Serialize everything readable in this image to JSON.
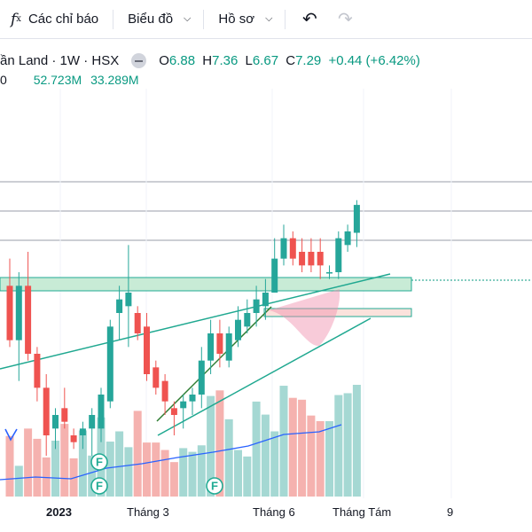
{
  "toolbar": {
    "fx_label": "f",
    "fx_sub": "x",
    "indicators": "Các chỉ báo",
    "chart_type": "Biểu đồ",
    "profile": "Hồ sơ"
  },
  "legend": {
    "symbol": "ần Land · 1W · HSX",
    "open_key": "O",
    "open": "6.88",
    "high_key": "H",
    "high": "7.36",
    "low_key": "L",
    "low": "6.67",
    "close_key": "C",
    "close": "7.29",
    "change": "+0.44 (+6.42%)"
  },
  "volume_row": {
    "prefix": "0",
    "vol": "52.723M",
    "vol_ma": "33.289M"
  },
  "time_axis": {
    "t1": "2023",
    "t2": "Tháng 3",
    "t3": "Tháng 6",
    "t4": "Tháng Tám",
    "t5": "9"
  },
  "markers": [
    "F",
    "F",
    "F"
  ],
  "colors": {
    "up": "#26a69a",
    "down": "#ef5350",
    "vol_up": "#a5d8d3",
    "vol_down": "#f5b2af",
    "trend": "#1fa890",
    "ma": "#2962ff"
  },
  "chart_data": {
    "type": "candlestick",
    "x_ticks": [
      "2023",
      "Tháng 3",
      "Tháng 6",
      "Tháng Tám",
      "9"
    ],
    "candles": [
      {
        "o": 6.1,
        "h": 6.5,
        "l": 5.2,
        "c": 5.3
      },
      {
        "o": 5.3,
        "h": 6.3,
        "l": 4.7,
        "c": 6.1
      },
      {
        "o": 6.1,
        "h": 6.6,
        "l": 5.0,
        "c": 5.1
      },
      {
        "o": 5.1,
        "h": 5.2,
        "l": 4.4,
        "c": 4.6
      },
      {
        "o": 4.6,
        "h": 4.8,
        "l": 3.6,
        "c": 3.9
      },
      {
        "o": 4.0,
        "h": 4.3,
        "l": 3.7,
        "c": 4.2
      },
      {
        "o": 4.3,
        "h": 4.6,
        "l": 4.0,
        "c": 4.1
      },
      {
        "o": 3.9,
        "h": 4.0,
        "l": 3.7,
        "c": 3.8
      },
      {
        "o": 3.9,
        "h": 4.1,
        "l": 3.7,
        "c": 4.0
      },
      {
        "o": 4.0,
        "h": 4.3,
        "l": 3.6,
        "c": 4.2
      },
      {
        "o": 4.0,
        "h": 4.6,
        "l": 3.8,
        "c": 4.5
      },
      {
        "o": 4.4,
        "h": 5.6,
        "l": 4.3,
        "c": 5.5
      },
      {
        "o": 5.7,
        "h": 6.1,
        "l": 5.3,
        "c": 5.9
      },
      {
        "o": 5.8,
        "h": 6.7,
        "l": 5.2,
        "c": 6.0
      },
      {
        "o": 5.7,
        "h": 5.8,
        "l": 5.3,
        "c": 5.4
      },
      {
        "o": 5.5,
        "h": 5.7,
        "l": 4.7,
        "c": 4.8
      },
      {
        "o": 4.9,
        "h": 5.0,
        "l": 4.5,
        "c": 4.6
      },
      {
        "o": 4.7,
        "h": 4.8,
        "l": 4.2,
        "c": 4.4
      },
      {
        "o": 4.3,
        "h": 4.4,
        "l": 3.9,
        "c": 4.2
      },
      {
        "o": 4.3,
        "h": 4.5,
        "l": 4.0,
        "c": 4.4
      },
      {
        "o": 4.4,
        "h": 4.6,
        "l": 4.2,
        "c": 4.5
      },
      {
        "o": 4.5,
        "h": 5.2,
        "l": 4.3,
        "c": 5.0
      },
      {
        "o": 5.0,
        "h": 5.6,
        "l": 4.8,
        "c": 5.4
      },
      {
        "o": 5.4,
        "h": 5.6,
        "l": 4.9,
        "c": 5.1
      },
      {
        "o": 5.0,
        "h": 5.5,
        "l": 4.9,
        "c": 5.4
      },
      {
        "o": 5.3,
        "h": 5.8,
        "l": 5.2,
        "c": 5.6
      },
      {
        "o": 5.5,
        "h": 5.9,
        "l": 5.4,
        "c": 5.7
      },
      {
        "o": 5.7,
        "h": 6.1,
        "l": 5.5,
        "c": 5.9
      },
      {
        "o": 5.8,
        "h": 6.2,
        "l": 5.6,
        "c": 6.0
      },
      {
        "o": 6.0,
        "h": 6.8,
        "l": 6.0,
        "c": 6.5
      },
      {
        "o": 6.5,
        "h": 7.0,
        "l": 6.4,
        "c": 6.8
      },
      {
        "o": 6.8,
        "h": 6.9,
        "l": 6.4,
        "c": 6.5
      },
      {
        "o": 6.6,
        "h": 6.8,
        "l": 6.3,
        "c": 6.4
      },
      {
        "o": 6.6,
        "h": 6.8,
        "l": 6.3,
        "c": 6.4
      },
      {
        "o": 6.6,
        "h": 6.8,
        "l": 6.2,
        "c": 6.4
      },
      {
        "o": 6.3,
        "h": 6.4,
        "l": 6.2,
        "c": 6.3
      },
      {
        "o": 6.3,
        "h": 6.9,
        "l": 6.2,
        "c": 6.8
      },
      {
        "o": 6.7,
        "h": 7.0,
        "l": 6.6,
        "c": 6.9
      },
      {
        "o": 6.88,
        "h": 7.36,
        "l": 6.67,
        "c": 7.29
      }
    ],
    "volume": [
      6.5,
      3.3,
      7.3,
      6.2,
      4.2,
      6.0,
      7.8,
      4.1,
      7.1,
      4.4,
      8.5,
      5.9,
      7.0,
      5.3,
      9.2,
      5.8,
      5.8,
      5.0,
      3.7,
      5.2,
      4.8,
      5.5,
      10.8,
      11.4,
      8.3,
      5.0,
      4.3,
      10.2,
      8.8,
      7.0,
      11.9,
      10.6,
      10.4,
      8.7,
      8.1,
      8.1,
      10.9,
      11.1,
      12.0
    ],
    "ylim": [
      3.0,
      9.0
    ]
  }
}
